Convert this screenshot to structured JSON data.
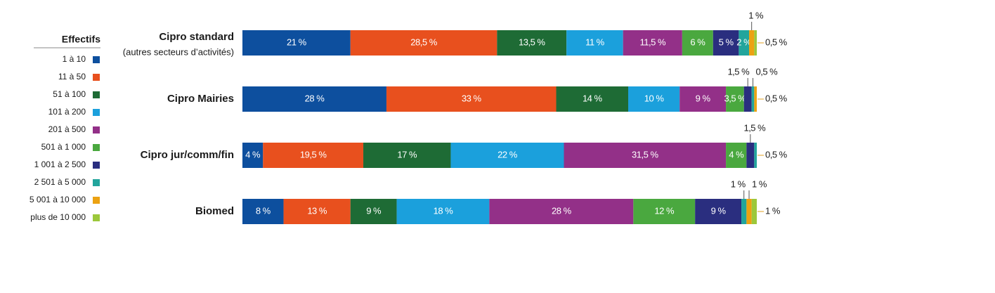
{
  "chart_data": {
    "type": "stacked-bar-horizontal",
    "legend_title": "Effectifs",
    "categories": [
      "Cipro standard",
      "Cipro Mairies",
      "Cipro jur/comm/fin",
      "Biomed"
    ],
    "category_subtitles": [
      "(autres secteurs d’activités)",
      null,
      null,
      null
    ],
    "series": [
      {
        "name": "1 à 10",
        "color": "#0d4f9e",
        "values": [
          21,
          28,
          4,
          8
        ],
        "value_labels": [
          "21 %",
          "28 %",
          "4 %",
          "8 %"
        ]
      },
      {
        "name": "11 à 50",
        "color": "#e8501e",
        "values": [
          28.5,
          33,
          19.5,
          13
        ],
        "value_labels": [
          "28,5 %",
          "33 %",
          "19,5 %",
          "13 %"
        ]
      },
      {
        "name": "51 à 100",
        "color": "#1e6b35",
        "values": [
          13.5,
          14,
          17,
          9
        ],
        "value_labels": [
          "13,5 %",
          "14 %",
          "17 %",
          "9 %"
        ]
      },
      {
        "name": "101 à 200",
        "color": "#1ba0dc",
        "values": [
          11,
          10,
          22,
          18
        ],
        "value_labels": [
          "11 %",
          "10 %",
          "22 %",
          "18 %"
        ]
      },
      {
        "name": "201 à 500",
        "color": "#933088",
        "values": [
          11.5,
          9,
          31.5,
          28
        ],
        "value_labels": [
          "11,5 %",
          "9 %",
          "31,5 %",
          "28 %"
        ]
      },
      {
        "name": "501 à 1 000",
        "color": "#4aa83f",
        "values": [
          6,
          3.5,
          4,
          12
        ],
        "value_labels": [
          "6 %",
          "3,5 %",
          "4 %",
          "12 %"
        ]
      },
      {
        "name": "1 001 à 2 500",
        "color": "#2a2e7f",
        "values": [
          5,
          1.5,
          1.5,
          9
        ],
        "value_labels": [
          "5 %",
          "1,5 %",
          "1,5 %",
          "9 %"
        ]
      },
      {
        "name": "2 501 à 5 000",
        "color": "#22a59c",
        "values": [
          2,
          0.5,
          0.5,
          1
        ],
        "value_labels": [
          "2 %",
          "0,5 %",
          "0,5 %",
          "1 %"
        ]
      },
      {
        "name": "5 001 à 10 000",
        "color": "#eca212",
        "values": [
          1,
          0.5,
          0,
          1
        ],
        "value_labels": [
          "1 %",
          "0,5 %",
          null,
          "1 %"
        ]
      },
      {
        "name": "plus de 10 000",
        "color": "#9cc83b",
        "values": [
          0.5,
          0,
          0,
          1
        ],
        "value_labels": [
          "0,5 %",
          null,
          null,
          "1 %"
        ]
      }
    ]
  }
}
